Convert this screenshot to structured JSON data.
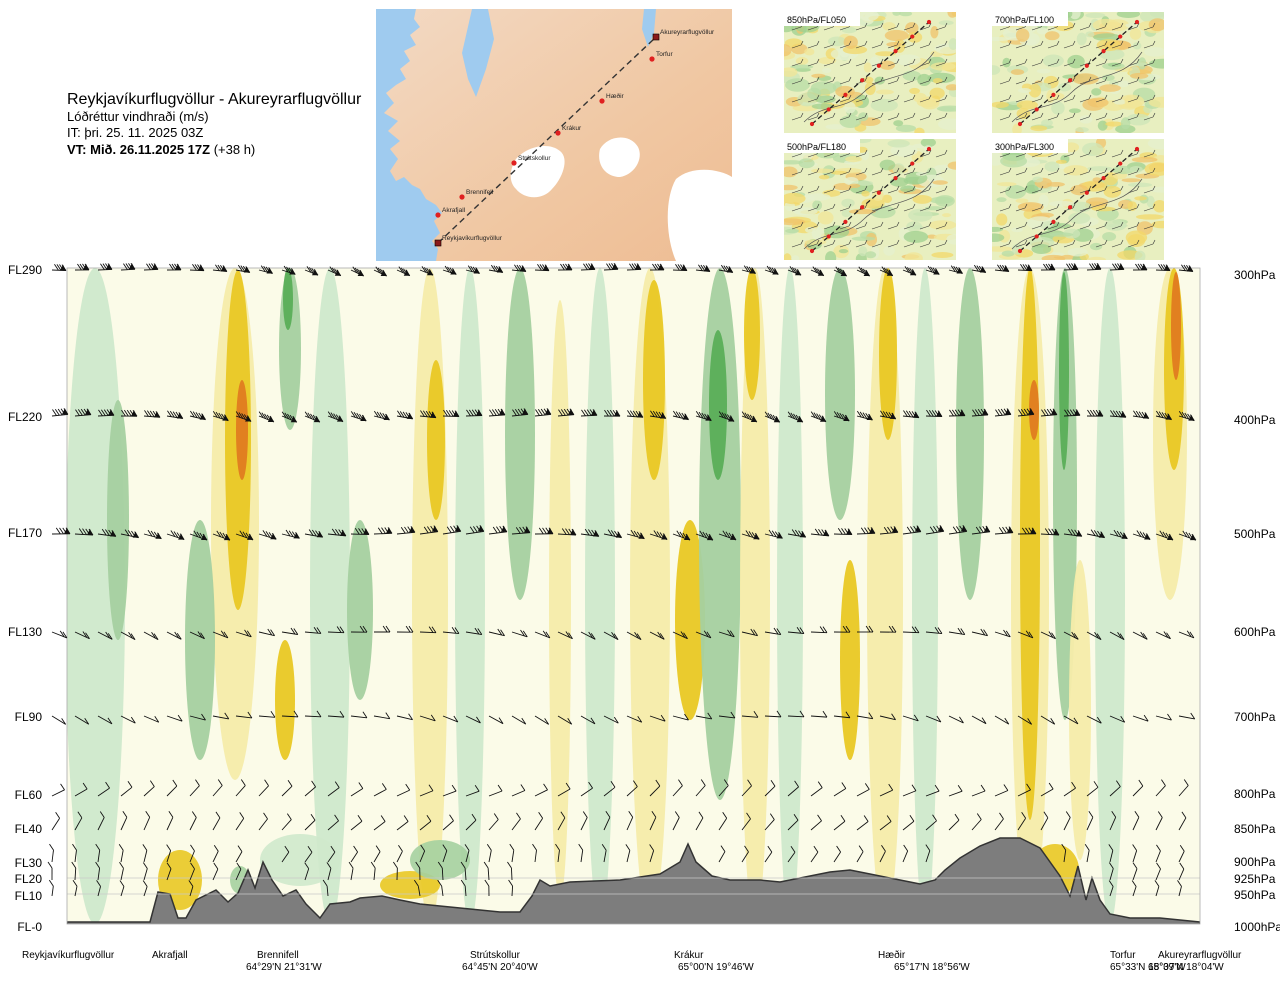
{
  "header": {
    "route_title": "Reykjavíkurflugvöllur - Akureyrarflugvöllur",
    "variable": "Lóðréttur vindhraði (m/s)",
    "issue_time": "IT: þri. 25. 11. 2025 03Z",
    "valid_time_bold": "VT: Mið. 26.11.2025 17Z",
    "valid_offset": "(+38 h)"
  },
  "map": {
    "waypoints": [
      "Akureyrarflugvöllur",
      "Torfur",
      "Hæðir",
      "Krákur",
      "Strútskollur",
      "Brennifell",
      "Akrafjall",
      "Reykjavíkurflugvöllur"
    ]
  },
  "thumbnails": [
    {
      "label": "850hPa/FL050"
    },
    {
      "label": "700hPa/FL100"
    },
    {
      "label": "500hPa/FL180"
    },
    {
      "label": "300hPa/FL300"
    }
  ],
  "chart_data": {
    "type": "heatmap",
    "title": "Lóðréttur vindhraði (m/s)",
    "levels": [
      {
        "fl": "FL290",
        "hpa": "300hPa"
      },
      {
        "fl": "FL220",
        "hpa": "400hPa"
      },
      {
        "fl": "FL170",
        "hpa": "500hPa"
      },
      {
        "fl": "FL130",
        "hpa": "600hPa"
      },
      {
        "fl": "FL90",
        "hpa": "700hPa"
      },
      {
        "fl": "FL60",
        "hpa": "800hPa"
      },
      {
        "fl": "FL40",
        "hpa": "850hPa"
      },
      {
        "fl": "FL30",
        "hpa": "900hPa"
      },
      {
        "fl": "FL20",
        "hpa": "925hPa"
      },
      {
        "fl": "FL10",
        "hpa": "950hPa"
      },
      {
        "fl": "FL-0",
        "hpa": "1000hPa"
      }
    ],
    "stations": [
      {
        "name": "Reykjavíkurflugvöllur",
        "coord": ""
      },
      {
        "name": "Akrafjall",
        "coord": ""
      },
      {
        "name": "Brennifell",
        "coord": "64°29'N 21°31'W"
      },
      {
        "name": "Strútskollur",
        "coord": "64°45'N 20°40'W"
      },
      {
        "name": "Krákur",
        "coord": "65°00'N 19°46'W"
      },
      {
        "name": "Hæðir",
        "coord": "65°17'N 18°56'W"
      },
      {
        "name": "Torfur",
        "coord": "65°33'N 18°07'W"
      },
      {
        "name": "Akureyrarflugvöllur",
        "coord": "65°39'N 18°04'W"
      }
    ],
    "colors": {
      "down_strong": "#e07b20",
      "down_mid": "#e9c824",
      "down_weak": "#f6ecaa",
      "neutral": "#fbfbe8",
      "up_weak": "#cfe9cc",
      "up_mid": "#a5d0a0",
      "up_strong": "#5aae58",
      "terrain": "#7d7d7d"
    }
  }
}
